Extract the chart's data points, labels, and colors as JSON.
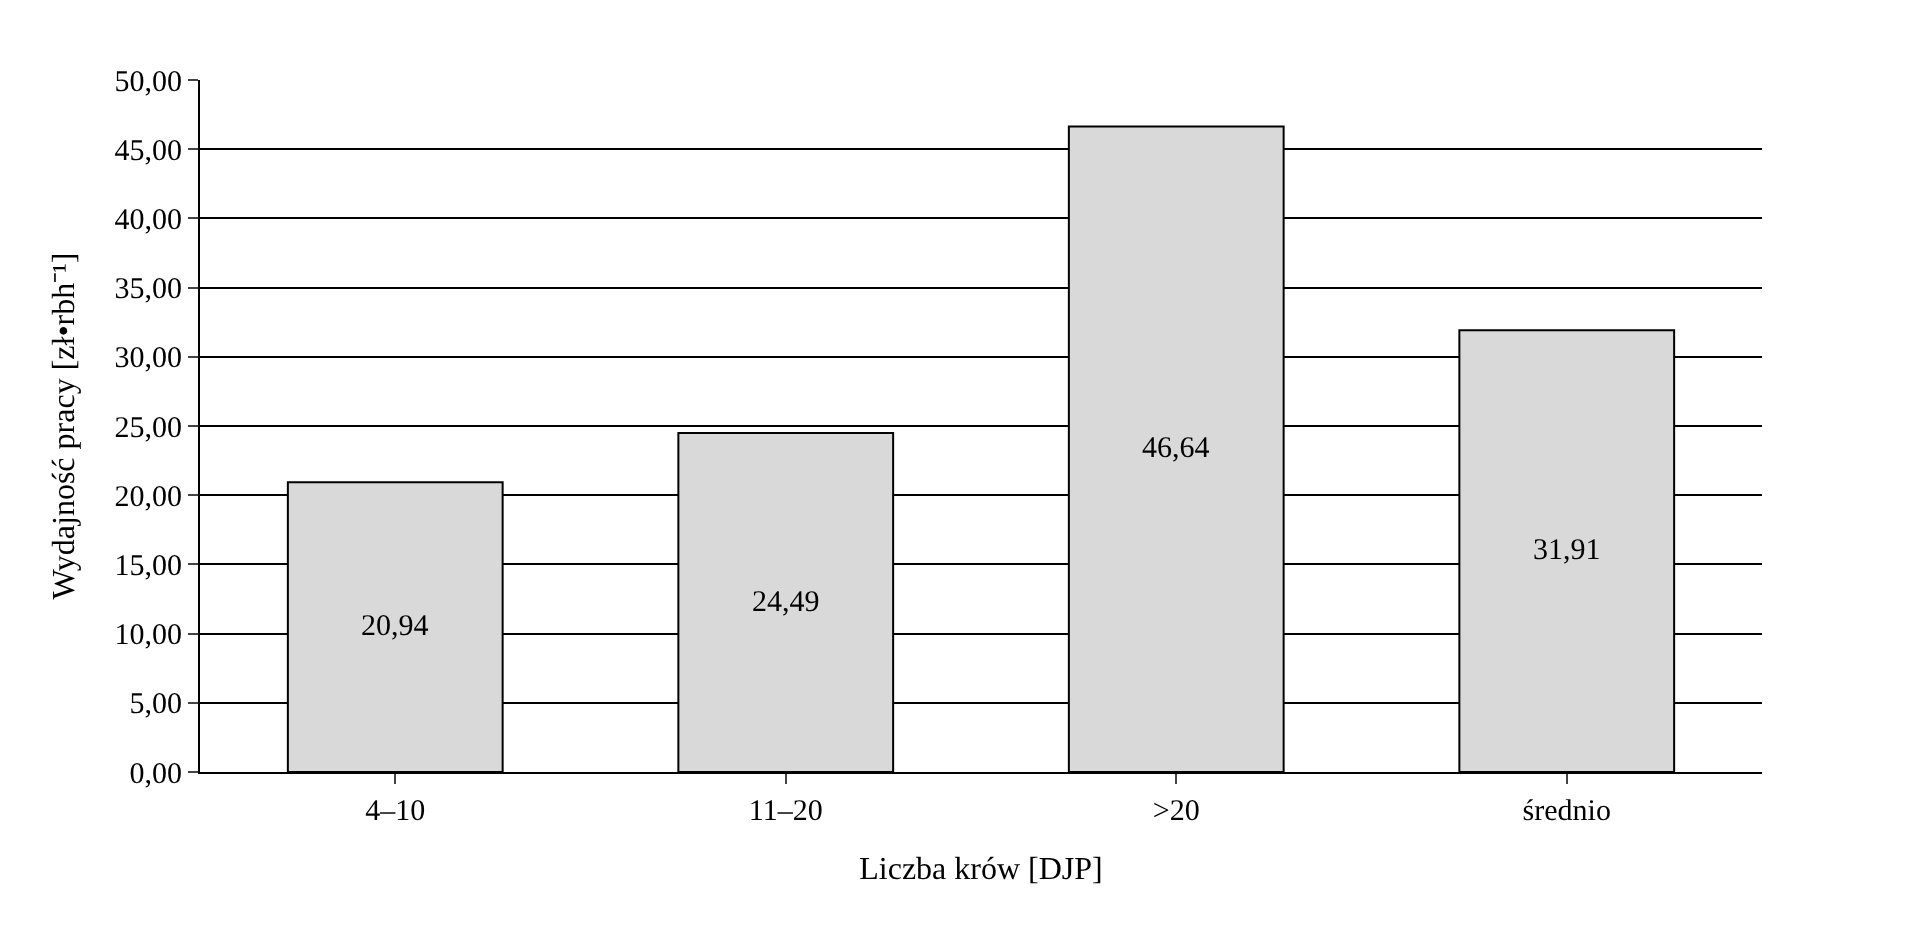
{
  "chart_data": {
    "type": "bar",
    "xlabel": "Liczba krów [DJP]",
    "ylabel": "Wydajność pracy [zł•rbh⁻¹]",
    "categories": [
      "4–10",
      "11–20",
      ">20",
      "średnio"
    ],
    "values": [
      20.94,
      24.49,
      46.64,
      31.91
    ],
    "value_labels": [
      "20,94",
      "24,49",
      "46,64",
      "31,91"
    ],
    "color": "#d9d9d9",
    "ylim": [
      0,
      50
    ],
    "yticks": [
      {
        "value": 0,
        "label": "0,00"
      },
      {
        "value": 5,
        "label": "5,00"
      },
      {
        "value": 10,
        "label": "10,00"
      },
      {
        "value": 15,
        "label": "15,00"
      },
      {
        "value": 20,
        "label": "20,00"
      },
      {
        "value": 25,
        "label": "25,00"
      },
      {
        "value": 30,
        "label": "30,00"
      },
      {
        "value": 35,
        "label": "35,00"
      },
      {
        "value": 40,
        "label": "40,00"
      },
      {
        "value": 45,
        "label": "45,00"
      },
      {
        "value": 50,
        "label": "50,00"
      }
    ],
    "grid": "y"
  }
}
